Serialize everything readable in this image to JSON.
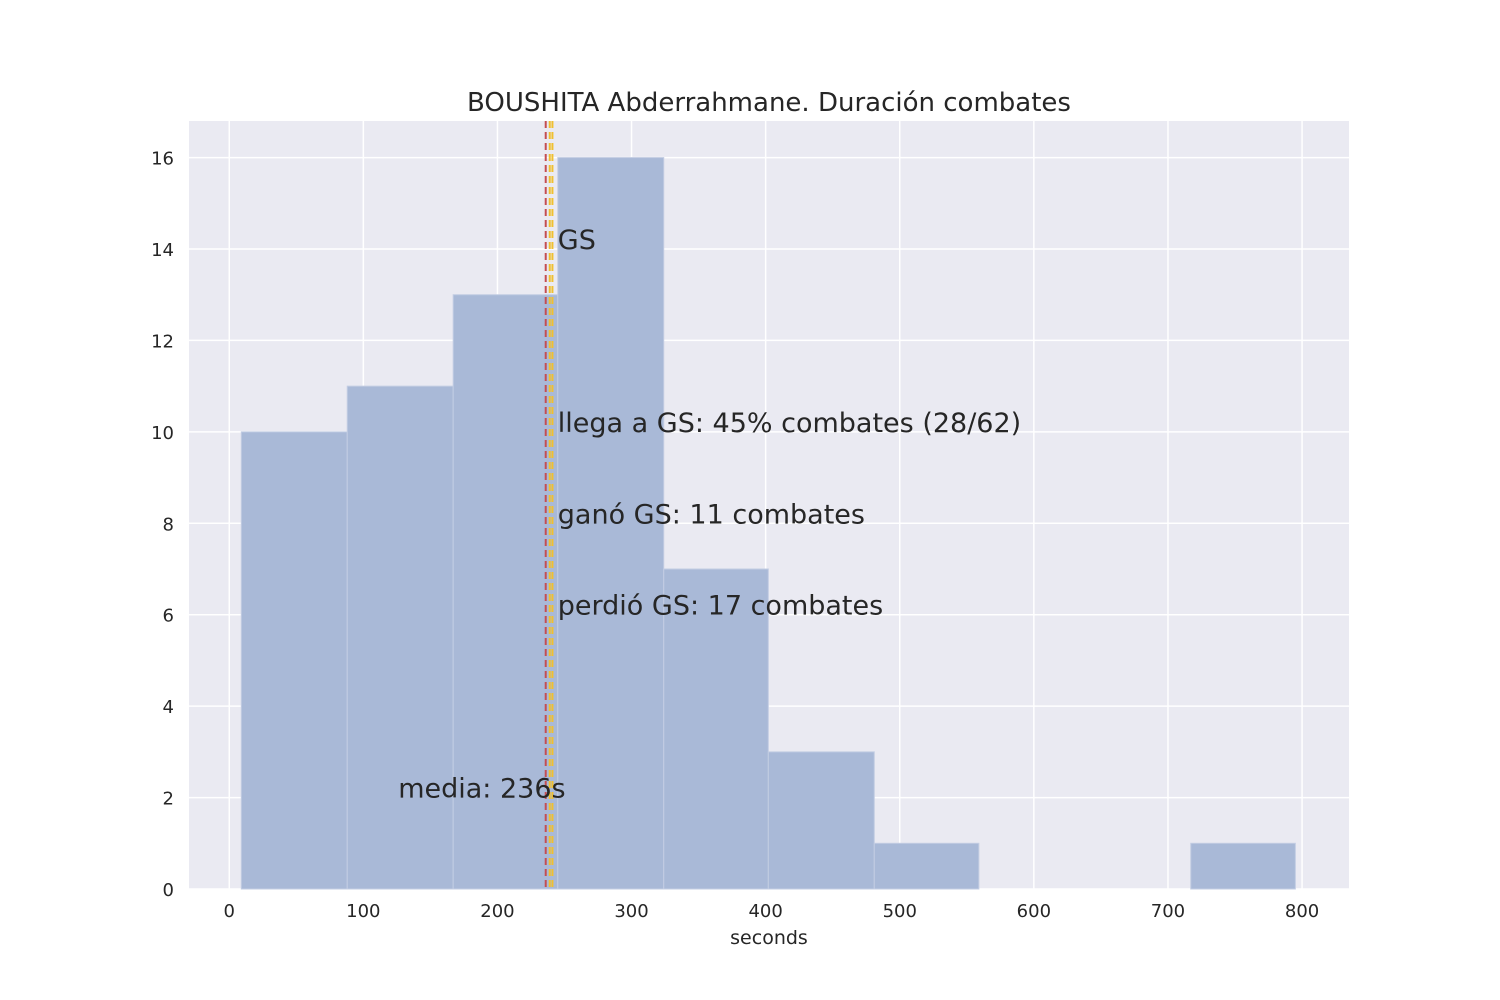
{
  "chart_data": {
    "type": "bar",
    "title": "BOUSHITA Abderrahmane. Duración combates",
    "xlabel": "seconds",
    "ylabel": "",
    "xlim": [
      -30,
      835
    ],
    "ylim": [
      0,
      16.8
    ],
    "xticks": [
      0,
      100,
      200,
      300,
      400,
      500,
      600,
      700,
      800
    ],
    "yticks": [
      0,
      2,
      4,
      6,
      8,
      10,
      12,
      14,
      16
    ],
    "grid": true,
    "bins": [
      {
        "x0": 9,
        "x1": 88,
        "count": 10
      },
      {
        "x0": 88,
        "x1": 167,
        "count": 11
      },
      {
        "x0": 167,
        "x1": 245,
        "count": 13
      },
      {
        "x0": 245,
        "x1": 324,
        "count": 16
      },
      {
        "x0": 324,
        "x1": 402,
        "count": 7
      },
      {
        "x0": 402,
        "x1": 481,
        "count": 3
      },
      {
        "x0": 481,
        "x1": 559,
        "count": 1
      },
      {
        "x0": 559,
        "x1": 638,
        "count": 0
      },
      {
        "x0": 638,
        "x1": 717,
        "count": 0
      },
      {
        "x0": 717,
        "x1": 795,
        "count": 1
      }
    ],
    "vlines": [
      {
        "x": 236,
        "color": "#c44e52",
        "style": "dashed"
      },
      {
        "x": 239,
        "color": "#f0c030",
        "style": "dashed"
      },
      {
        "x": 241,
        "color": "#f0c030",
        "style": "dashed"
      }
    ],
    "annotations": [
      {
        "text": "GS",
        "x": 245,
        "y": 14,
        "color": "#262626"
      },
      {
        "text": "llega a GS: 45% combates (28/62)",
        "x": 245,
        "y": 10,
        "color": "#262626"
      },
      {
        "text": "ganó GS: 11 combates",
        "x": 245,
        "y": 8,
        "color": "#262626"
      },
      {
        "text": "perdió GS: 17 combates",
        "x": 245,
        "y": 6,
        "color": "#262626"
      },
      {
        "text": "media: 236s",
        "x": 126,
        "y": 2,
        "color": "#c44e52"
      }
    ],
    "colors": {
      "bar": "#a9b9d7",
      "bar_edge": "#c3cde3",
      "background": "#eaeaf2",
      "grid": "#ffffff"
    }
  }
}
